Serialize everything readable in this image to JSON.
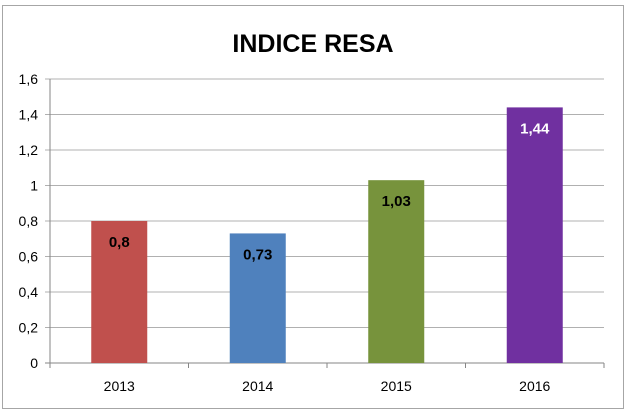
{
  "chart_data": {
    "type": "bar",
    "title": "INDICE RESA",
    "categories": [
      "2013",
      "2014",
      "2015",
      "2016"
    ],
    "values": [
      0.8,
      0.73,
      1.03,
      1.44
    ],
    "data_labels": [
      "0,8",
      "0,73",
      "1,03",
      "1,44"
    ],
    "colors": [
      "#c0504d",
      "#4f81bd",
      "#77933c",
      "#7030a0"
    ],
    "label_colors": [
      "#000000",
      "#000000",
      "#000000",
      "#ffffff"
    ],
    "ylim": [
      0,
      1.6
    ],
    "yticks": [
      "0",
      "0,2",
      "0,4",
      "0,6",
      "0,8",
      "1",
      "1,2",
      "1,4",
      "1,6"
    ],
    "grid": true,
    "xlabel": "",
    "ylabel": "",
    "legend": "none"
  }
}
